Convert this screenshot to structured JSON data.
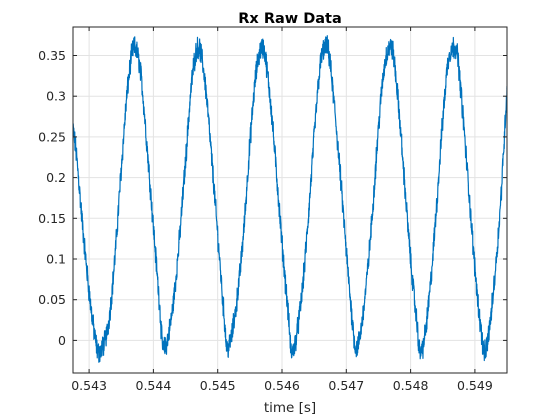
{
  "chart_data": {
    "type": "line",
    "title": "Rx Raw Data",
    "xlabel": "time [s]",
    "ylabel": "",
    "xlim": [
      0.54275,
      0.5495
    ],
    "ylim": [
      -0.04,
      0.385
    ],
    "xticks": [
      0.543,
      0.544,
      0.545,
      0.546,
      0.547,
      0.548,
      0.549
    ],
    "xtick_labels": [
      "0.543",
      "0.544",
      "0.545",
      "0.546",
      "0.547",
      "0.548",
      "0.549"
    ],
    "yticks": [
      0,
      0.05,
      0.1,
      0.15,
      0.2,
      0.25,
      0.3,
      0.35
    ],
    "ytick_labels": [
      "0",
      "0.05",
      "0.1",
      "0.15",
      "0.2",
      "0.25",
      "0.3",
      "0.35"
    ],
    "grid": true,
    "series": [
      {
        "color": "#0072BD",
        "x": [
          0.54275,
          0.5428,
          0.5429,
          0.543,
          0.5431,
          0.54315,
          0.5432,
          0.5433,
          0.5434,
          0.5435,
          0.5436,
          0.5437,
          0.5438,
          0.5439,
          0.544,
          0.5441,
          0.54415,
          0.5442,
          0.5443,
          0.5444,
          0.5445,
          0.5446,
          0.5447,
          0.5448,
          0.5449,
          0.545,
          0.5451,
          0.54515,
          0.5452,
          0.5453,
          0.5454,
          0.5455,
          0.5456,
          0.5457,
          0.5458,
          0.5459,
          0.546,
          0.5461,
          0.54615,
          0.5462,
          0.5463,
          0.5464,
          0.5465,
          0.5466,
          0.5467,
          0.5468,
          0.5469,
          0.547,
          0.5471,
          0.54715,
          0.5472,
          0.5473,
          0.5474,
          0.5475,
          0.5476,
          0.5477,
          0.5478,
          0.5479,
          0.548,
          0.5481,
          0.54815,
          0.5482,
          0.5483,
          0.5484,
          0.5485,
          0.5486,
          0.5487,
          0.5488,
          0.5489,
          0.549,
          0.5491,
          0.54915,
          0.5492,
          0.5493,
          0.5494,
          0.5495
        ],
        "y": [
          0.26,
          0.23,
          0.14,
          0.06,
          0.0,
          -0.015,
          -0.01,
          0.02,
          0.1,
          0.21,
          0.31,
          0.36,
          0.33,
          0.24,
          0.14,
          0.04,
          -0.01,
          -0.005,
          0.04,
          0.12,
          0.22,
          0.32,
          0.36,
          0.32,
          0.23,
          0.13,
          0.03,
          -0.01,
          0.0,
          0.05,
          0.13,
          0.24,
          0.33,
          0.36,
          0.31,
          0.22,
          0.12,
          0.03,
          -0.015,
          -0.005,
          0.05,
          0.14,
          0.25,
          0.34,
          0.36,
          0.3,
          0.21,
          0.11,
          0.02,
          -0.01,
          0.0,
          0.06,
          0.15,
          0.26,
          0.34,
          0.36,
          0.3,
          0.2,
          0.1,
          0.02,
          -0.015,
          -0.005,
          0.06,
          0.16,
          0.27,
          0.35,
          0.36,
          0.29,
          0.19,
          0.09,
          0.01,
          -0.015,
          0.0,
          0.07,
          0.17,
          0.31
        ]
      }
    ]
  }
}
